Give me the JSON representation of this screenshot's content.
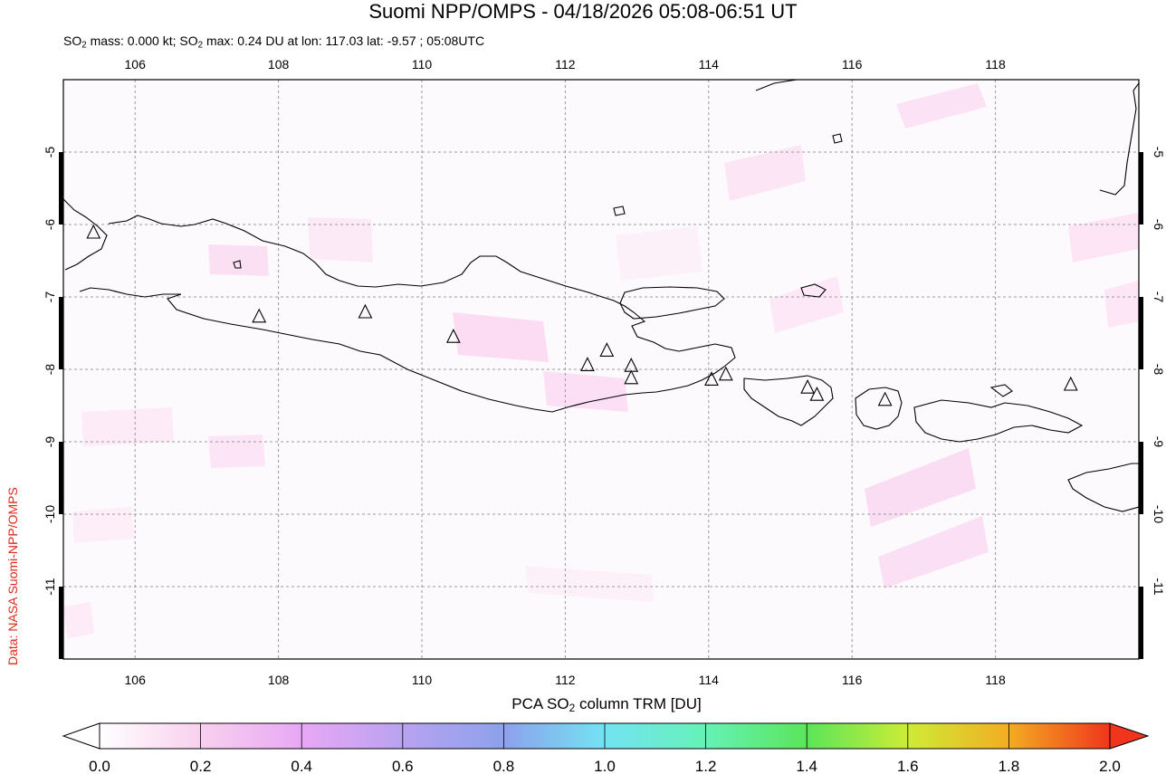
{
  "header": {
    "title": "Suomi NPP/OMPS - 04/18/2026 05:08-06:51 UT",
    "stats_prefix_1": "SO",
    "stats_sub": "2",
    "stats_mid": " mass: 0.000 kt; SO",
    "stats_suffix": " max: 0.24 DU at lon: 117.03 lat: -9.57 ; 05:08UTC"
  },
  "credit": "Data: NASA Suomi-NPP/OMPS",
  "map": {
    "lon_range": [
      105,
      120
    ],
    "lat_range": [
      -12,
      -4
    ],
    "lon_ticks": [
      "106",
      "108",
      "110",
      "112",
      "114",
      "116",
      "118"
    ],
    "lat_ticks": [
      "-5",
      "-6",
      "-7",
      "-8",
      "-9",
      "-10",
      "-11"
    ],
    "gridlines": "dashed",
    "volcanoes": [
      {
        "lon": 105.42,
        "lat": -6.1
      },
      {
        "lon": 107.73,
        "lat": -7.26
      },
      {
        "lon": 109.21,
        "lat": -7.2
      },
      {
        "lon": 110.44,
        "lat": -7.54
      },
      {
        "lon": 112.31,
        "lat": -7.93
      },
      {
        "lon": 112.58,
        "lat": -7.73
      },
      {
        "lon": 112.92,
        "lat": -7.94
      },
      {
        "lon": 112.92,
        "lat": -8.11
      },
      {
        "lon": 114.04,
        "lat": -8.13
      },
      {
        "lon": 114.24,
        "lat": -8.06
      },
      {
        "lon": 115.38,
        "lat": -8.24
      },
      {
        "lon": 115.51,
        "lat": -8.34
      },
      {
        "lon": 116.46,
        "lat": -8.41
      },
      {
        "lon": 119.05,
        "lat": -8.2
      }
    ]
  },
  "colorbar": {
    "label_prefix": "PCA SO",
    "label_sub": "2",
    "label_suffix": " column TRM [DU]",
    "ticks": [
      "0.0",
      "0.2",
      "0.4",
      "0.6",
      "0.8",
      "1.0",
      "1.2",
      "1.4",
      "1.6",
      "1.8",
      "2.0"
    ],
    "range": [
      0.0,
      2.0
    ],
    "colors": [
      "#ffffff",
      "#f8d0ee",
      "#e8a8f5",
      "#b8a3f0",
      "#8da1ec",
      "#73e3f3",
      "#65f2b6",
      "#5ae55a",
      "#cdec36",
      "#f3ad22",
      "#f0351c"
    ]
  }
}
